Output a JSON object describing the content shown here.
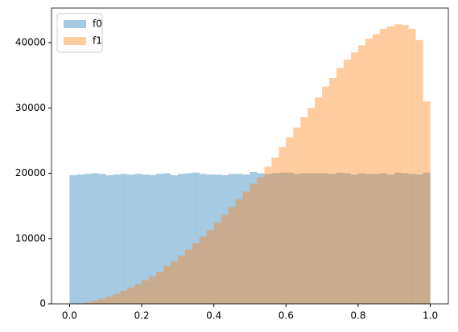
{
  "chart_data": {
    "type": "histogram",
    "bins": [
      0,
      0.02,
      0.04,
      0.06,
      0.08,
      0.1,
      0.12,
      0.14,
      0.16,
      0.18,
      0.2,
      0.22,
      0.24,
      0.26,
      0.28,
      0.3,
      0.32,
      0.34,
      0.36,
      0.38,
      0.4,
      0.42,
      0.44,
      0.46,
      0.48,
      0.5,
      0.52,
      0.54,
      0.56,
      0.58,
      0.6,
      0.62,
      0.64,
      0.66,
      0.68,
      0.7,
      0.72,
      0.74,
      0.76,
      0.78,
      0.8,
      0.82,
      0.84,
      0.86,
      0.88,
      0.9,
      0.92,
      0.94,
      0.96,
      0.98,
      1
    ],
    "series": [
      {
        "name": "f0",
        "color": "#1f77b4",
        "values": [
          19700,
          19800,
          19900,
          20000,
          19900,
          19700,
          19800,
          19900,
          19800,
          19900,
          19800,
          19700,
          19900,
          20000,
          19700,
          19900,
          20000,
          20100,
          19900,
          19800,
          19800,
          19700,
          19900,
          19900,
          19800,
          20200,
          20000,
          19900,
          20000,
          20100,
          20100,
          19900,
          20000,
          20000,
          20000,
          20000,
          19900,
          20100,
          20000,
          19800,
          20000,
          19900,
          19900,
          20000,
          19800,
          20100,
          20000,
          19900,
          19800,
          20100
        ]
      },
      {
        "name": "f1",
        "color": "#ff7f0e",
        "values": [
          0,
          50,
          200,
          500,
          800,
          1100,
          1500,
          2000,
          2500,
          3000,
          3600,
          4200,
          4900,
          5800,
          6500,
          7400,
          8300,
          9300,
          10300,
          11300,
          12400,
          13600,
          14800,
          16000,
          17200,
          18400,
          19400,
          21000,
          22400,
          24000,
          25500,
          27000,
          28600,
          30000,
          31600,
          33300,
          34600,
          36100,
          37400,
          38500,
          39600,
          40600,
          41300,
          42100,
          42500,
          42800,
          42700,
          42100,
          40400,
          31000
        ]
      }
    ],
    "alpha": 0.4,
    "xlim": [
      -0.05,
      1.05
    ],
    "xticks": [
      {
        "value": 0,
        "label": "0.0"
      },
      {
        "value": 0.2,
        "label": "0.2"
      },
      {
        "value": 0.4,
        "label": "0.4"
      },
      {
        "value": 0.6,
        "label": "0.6"
      },
      {
        "value": 0.8,
        "label": "0.8"
      },
      {
        "value": 1,
        "label": "1.0"
      }
    ],
    "ylim": [
      0,
      45300
    ],
    "yticks": [
      0,
      10000,
      20000,
      30000,
      40000
    ],
    "legend": "upper left"
  }
}
